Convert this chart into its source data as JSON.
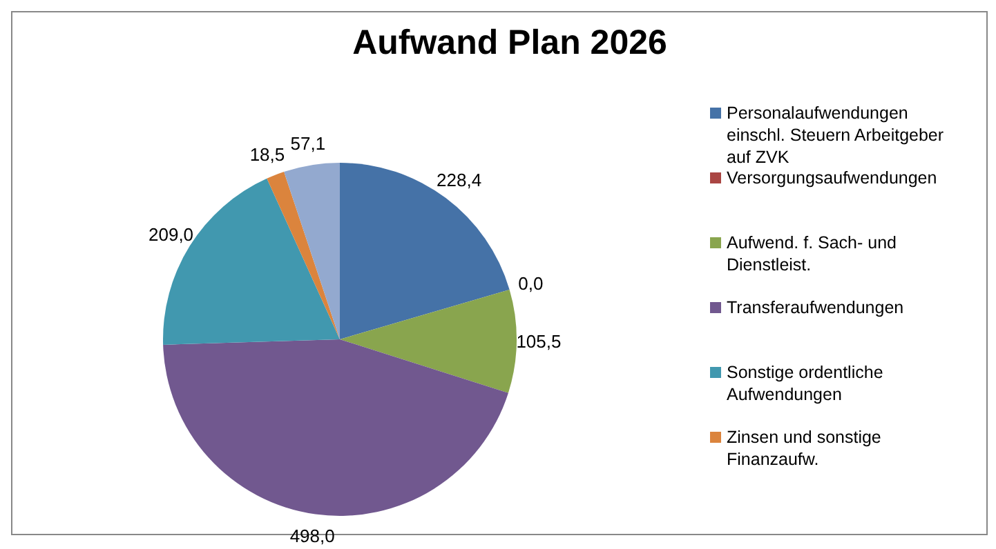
{
  "chart_data": {
    "type": "pie",
    "title": "Aufwand Plan 2026",
    "categories": [
      "Personalaufwendungen einschl. Steuern Arbeitgeber auf ZVK",
      "Versorgungsaufwendungen",
      "Aufwend. f. Sach- und Dienstleist.",
      "Transferaufwendungen",
      "Sonstige ordentliche Aufwendungen",
      "Zinsen und sonstige Finanzaufw.",
      null
    ],
    "values": [
      228.4,
      0.0,
      105.5,
      498.0,
      209.0,
      18.5,
      57.1
    ],
    "value_labels": [
      "228,4",
      "0,0",
      "105,5",
      "498,0",
      "209,0",
      "18,5",
      "57,1"
    ],
    "colors": [
      "#4572a7",
      "#aa4643",
      "#89a54e",
      "#71588f",
      "#4198af",
      "#db843d",
      "#93a9cf"
    ],
    "legend": "right"
  }
}
